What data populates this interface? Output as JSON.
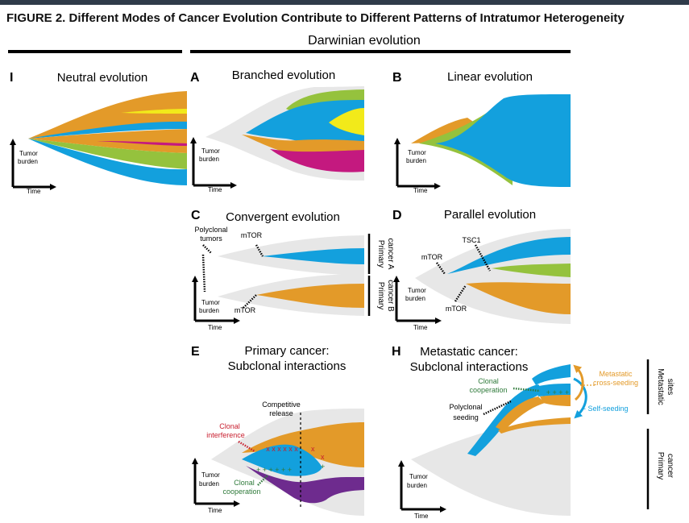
{
  "figure": {
    "title": "FIGURE 2. Different Modes of Cancer Evolution Contribute to Different Patterns of Intratumor Heterogeneity",
    "darwinian_header": "Darwinian evolution"
  },
  "axis": {
    "ylabel_1": "Tumor",
    "ylabel_2": "burden",
    "xlabel": "Time"
  },
  "colors": {
    "orange": "#e39a29",
    "orange_dark": "#d9891a",
    "blue": "#13a0dd",
    "green": "#95c23d",
    "yellow": "#f2ea1a",
    "magenta": "#c4197f",
    "purple": "#6e2b8e",
    "gray": "#e7e7e7",
    "red": "#c81e2e",
    "dark_green": "#2f7a3a"
  },
  "panels": {
    "I": {
      "letter": "I",
      "title": "Neutral evolution"
    },
    "A": {
      "letter": "A",
      "title": "Branched evolution"
    },
    "B": {
      "letter": "B",
      "title": "Linear evolution"
    },
    "C": {
      "letter": "C",
      "title": "Convergent evolution",
      "polyclonal_1": "Polyclonal",
      "polyclonal_2": "tumors",
      "mtor_top": "mTOR",
      "mtor_bottom": "mTOR",
      "cancer_a_1": "Primary",
      "cancer_a_2": "cancer A",
      "cancer_b_1": "Primary",
      "cancer_b_2": "cancer B"
    },
    "D": {
      "letter": "D",
      "title": "Parallel evolution",
      "tsc1": "TSC1",
      "mtor_top": "mTOR",
      "mtor_bottom": "mTOR"
    },
    "E": {
      "letter": "E",
      "title_1": "Primary cancer:",
      "title_2": "Subclonal interactions",
      "competitive_1": "Competitive",
      "competitive_2": "release",
      "interference_1": "Clonal",
      "interference_2": "interference",
      "cooperation_1": "Clonal",
      "cooperation_2": "cooperation"
    },
    "H": {
      "letter": "H",
      "title_1": "Metastatic cancer:",
      "title_2": "Subclonal interactions",
      "cooperation_1": "Clonal",
      "cooperation_2": "cooperation",
      "polyclonal_1": "Polyclonal",
      "polyclonal_2": "seeding",
      "cross_1": "Metastatic",
      "cross_2": "cross-seeding",
      "self_seeding": "- Self-seeding",
      "metastatic_sites_1": "Metastatic",
      "metastatic_sites_2": "sites",
      "primary_cancer_1": "Primary",
      "primary_cancer_2": "cancer"
    }
  }
}
